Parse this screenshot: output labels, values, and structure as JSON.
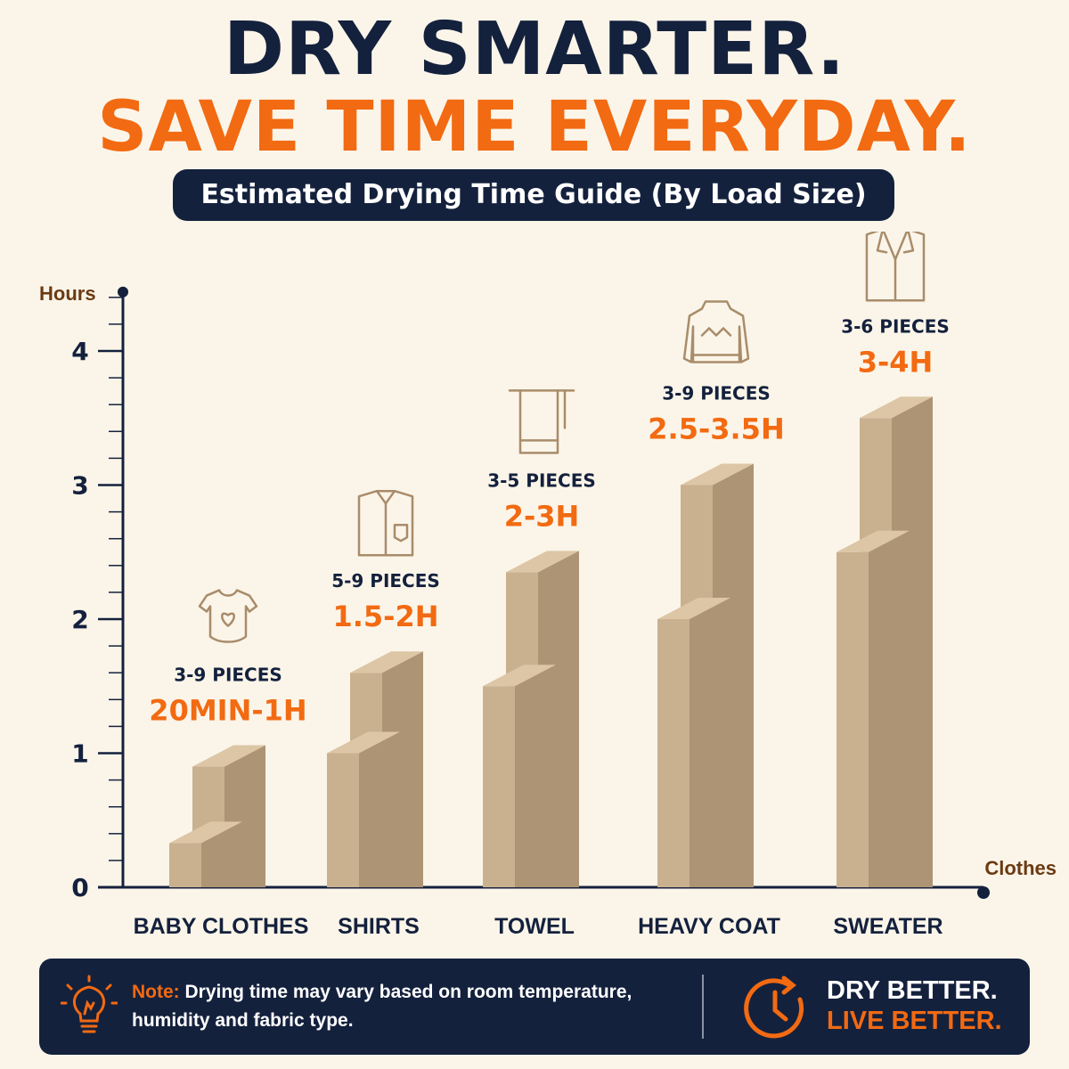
{
  "header": {
    "line1": "DRY SMARTER.",
    "line2": "SAVE TIME EVERYDAY.",
    "subtitle": "Estimated Drying Time Guide (By Load Size)"
  },
  "colors": {
    "navy": "#14213d",
    "orange": "#f26a12",
    "background": "#fbf5e9",
    "bar_front": "#c9b190",
    "bar_side": "#ad9474",
    "bar_top": "#dcc6a6",
    "axis_label": "#6b3a12"
  },
  "chart_data": {
    "type": "bar",
    "title": "Estimated Drying Time Guide (By Load Size)",
    "xlabel": "Clothes",
    "ylabel": "Hours",
    "ylim": [
      0,
      4.4
    ],
    "yticks": [
      0,
      1,
      2,
      3,
      4
    ],
    "grid": false,
    "categories": [
      "BABY CLOTHES",
      "SHIRTS",
      "TOWEL",
      "HEAVY COAT",
      "SWEATER"
    ],
    "series": [
      {
        "values": [
          0.33,
          1.0,
          1.5,
          2.0,
          2.5
        ]
      },
      {
        "values": [
          0.9,
          1.6,
          2.35,
          3.0,
          3.5
        ]
      }
    ],
    "pieces": [
      "3-9 PIECES",
      "5-9 PIECES",
      "3-5 PIECES",
      "3-9 PIECES",
      "3-6 PIECES"
    ],
    "time_labels": [
      "20MIN-1H",
      "1.5-2H",
      "2-3H",
      "2.5-3.5H",
      "3-4H"
    ],
    "icons": [
      "baby-onesie-icon",
      "shirt-icon",
      "towel-icon",
      "sweater-icon",
      "coat-icon"
    ]
  },
  "footer": {
    "note_label": "Note:",
    "note_text": " Drying time may vary based on room temperature, humidity and fabric type.",
    "slogan_line1": "DRY BETTER.",
    "slogan_line2": "LIVE BETTER.",
    "icons": [
      "lightbulb-icon",
      "clock-icon"
    ]
  }
}
